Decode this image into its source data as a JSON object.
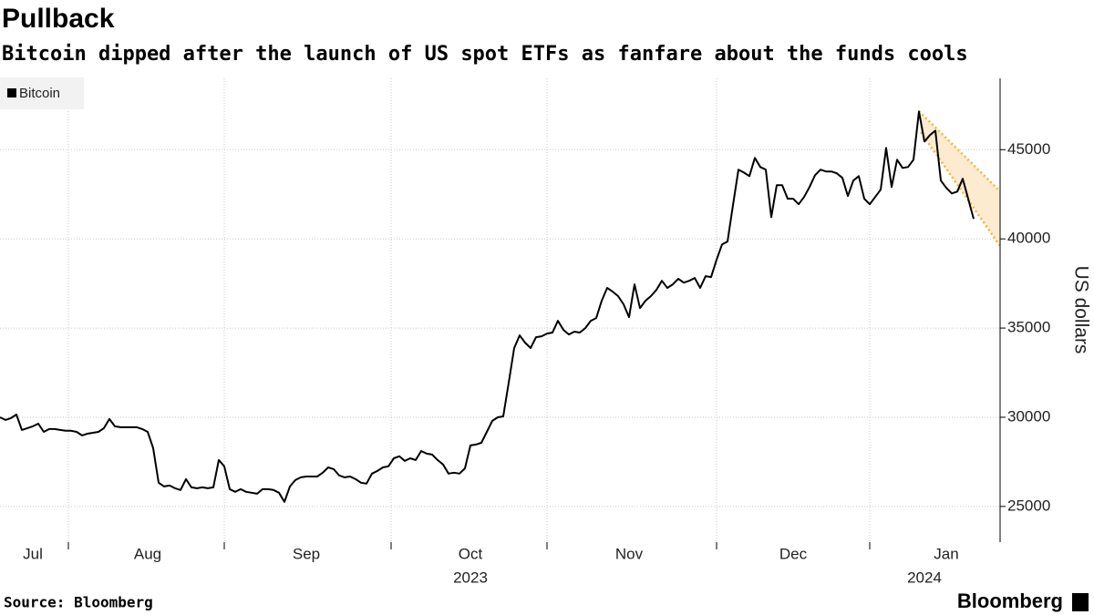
{
  "chart_data": {
    "type": "line",
    "title": "Pullback",
    "subtitle": "Bitcoin dipped after the launch of US spot ETFs as fanfare about the funds cools",
    "source": "Source: Bloomberg",
    "logo": "Bloomberg",
    "y_label": "US dollars",
    "legend": "top-left",
    "grid": true,
    "ylim": [
      23000,
      49000
    ],
    "yticks": [
      25000,
      30000,
      35000,
      40000,
      45000
    ],
    "categories": [
      null,
      null,
      null,
      null,
      null,
      null,
      "Jul",
      null,
      null,
      null,
      null,
      null,
      null,
      null,
      null,
      null,
      null,
      null,
      null,
      null,
      null,
      null,
      null,
      null,
      null,
      null,
      null,
      "Aug",
      null,
      null,
      null,
      null,
      null,
      null,
      null,
      null,
      null,
      null,
      null,
      null,
      null,
      null,
      null,
      null,
      null,
      null,
      null,
      null,
      null,
      null,
      null,
      null,
      null,
      null,
      null,
      null,
      "Sep",
      null,
      null,
      null,
      null,
      null,
      null,
      null,
      null,
      null,
      null,
      null,
      null,
      null,
      null,
      null,
      null,
      null,
      null,
      null,
      null,
      null,
      null,
      null,
      null,
      null,
      null,
      null,
      null,
      null,
      "Oct",
      null,
      null,
      null,
      null,
      null,
      null,
      null,
      null,
      null,
      null,
      null,
      null,
      null,
      null,
      null,
      null,
      null,
      null,
      null,
      null,
      null,
      null,
      null,
      null,
      null,
      null,
      null,
      null,
      "Nov",
      null,
      null,
      null,
      null,
      null,
      null,
      null,
      null,
      null,
      null,
      null,
      null,
      null,
      null,
      null,
      null,
      null,
      null,
      null,
      null,
      null,
      null,
      null,
      null,
      null,
      null,
      null,
      null,
      null,
      "Dec",
      null,
      null,
      null,
      null,
      null,
      null,
      null,
      null,
      null,
      null,
      null,
      null,
      null,
      null,
      null,
      null,
      null,
      null,
      null,
      null,
      null,
      null,
      null,
      null,
      null,
      null,
      null,
      "Jan",
      null,
      null,
      null,
      null,
      null
    ],
    "year_labels": [
      null,
      null,
      null,
      null,
      null,
      null,
      null,
      null,
      null,
      null,
      null,
      null,
      null,
      null,
      null,
      null,
      null,
      null,
      null,
      null,
      null,
      null,
      null,
      null,
      null,
      null,
      null,
      null,
      null,
      null,
      null,
      null,
      null,
      null,
      null,
      null,
      null,
      null,
      null,
      null,
      null,
      null,
      null,
      null,
      null,
      null,
      null,
      null,
      null,
      null,
      null,
      null,
      null,
      null,
      null,
      null,
      null,
      null,
      null,
      null,
      null,
      null,
      null,
      null,
      null,
      null,
      null,
      null,
      null,
      null,
      null,
      null,
      null,
      null,
      null,
      null,
      null,
      null,
      null,
      null,
      null,
      null,
      null,
      null,
      null,
      null,
      "2023",
      null,
      null,
      null,
      null,
      null,
      null,
      null,
      null,
      null,
      null,
      null,
      null,
      null,
      null,
      null,
      null,
      null,
      null,
      null,
      null,
      null,
      null,
      null,
      null,
      null,
      null,
      null,
      null,
      null,
      null,
      null,
      null,
      null,
      null,
      null,
      null,
      null,
      null,
      null,
      null,
      null,
      null,
      null,
      null,
      null,
      null,
      null,
      null,
      null,
      null,
      null,
      null,
      null,
      null,
      null,
      null,
      null,
      null,
      null,
      null,
      null,
      null,
      null,
      null,
      null,
      null,
      null,
      null,
      null,
      null,
      null,
      null,
      null,
      null,
      null,
      null,
      null,
      null,
      null,
      null,
      null,
      null,
      "2024",
      null,
      null,
      null,
      null,
      null
    ],
    "series": [
      {
        "name": "Bitcoin",
        "color": "#000000",
        "values": [
          30000,
          29850,
          29950,
          30150,
          29290,
          29390,
          29490,
          29640,
          29180,
          29340,
          29340,
          29290,
          29240,
          29240,
          29180,
          28980,
          29080,
          29130,
          29180,
          29390,
          29900,
          29490,
          29440,
          29440,
          29440,
          29440,
          29340,
          29180,
          28270,
          26330,
          26120,
          26170,
          26020,
          25920,
          26530,
          26070,
          26020,
          26070,
          26020,
          26070,
          27600,
          27250,
          25970,
          25820,
          25970,
          25820,
          25770,
          25710,
          25970,
          25970,
          25920,
          25770,
          25260,
          26120,
          26480,
          26630,
          26680,
          26680,
          26680,
          26890,
          27190,
          27090,
          26740,
          26630,
          26680,
          26530,
          26330,
          26280,
          26840,
          26990,
          27190,
          27250,
          27700,
          27810,
          27550,
          27700,
          27600,
          28110,
          27960,
          27910,
          27600,
          27350,
          26840,
          26890,
          26840,
          27140,
          28420,
          28470,
          28570,
          29180,
          29800,
          30000,
          30050,
          31940,
          33880,
          34590,
          34180,
          33880,
          34490,
          34540,
          34690,
          34750,
          35410,
          34900,
          34640,
          34800,
          34750,
          35000,
          35410,
          35560,
          36530,
          37250,
          37040,
          36790,
          36330,
          35610,
          37450,
          36120,
          36530,
          36790,
          37140,
          37650,
          37250,
          37450,
          37760,
          37550,
          37650,
          37810,
          37250,
          37910,
          37860,
          38830,
          39690,
          39850,
          41890,
          43880,
          43720,
          43520,
          44540,
          44030,
          43880,
          41220,
          43010,
          43010,
          42250,
          42250,
          41940,
          42350,
          42910,
          43570,
          43880,
          43780,
          43780,
          43670,
          43420,
          42400,
          43270,
          43520,
          42250,
          41940,
          42350,
          42760,
          45100,
          42910,
          44440,
          43980,
          44030,
          44440,
          47140,
          45460,
          45820,
          46070,
          43270,
          42860,
          42550,
          42650,
          43370,
          42250,
          41120
        ]
      }
    ]
  }
}
